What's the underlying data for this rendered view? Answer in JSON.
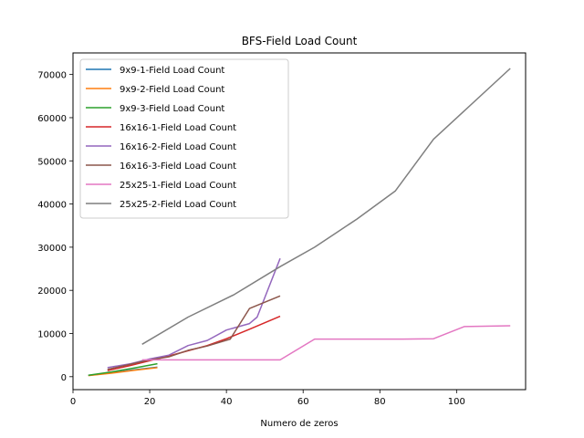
{
  "chart_data": {
    "type": "line",
    "title": "BFS-Field Load Count",
    "xlabel": "Numero de zeros",
    "ylabel": "",
    "xlim": [
      0,
      118
    ],
    "ylim": [
      -3000,
      75000
    ],
    "xticks": [
      0,
      20,
      40,
      60,
      80,
      100
    ],
    "yticks": [
      0,
      10000,
      20000,
      30000,
      40000,
      50000,
      60000,
      70000
    ],
    "grid": false,
    "legend_position": "top-left",
    "series": [
      {
        "name": "9x9-1-Field Load Count",
        "color": "#1f77b4",
        "x": [
          4,
          10,
          16,
          22
        ],
        "y": [
          300,
          900,
          1600,
          2200
        ]
      },
      {
        "name": "9x9-2-Field Load Count",
        "color": "#ff7f0e",
        "x": [
          4,
          10,
          16,
          22
        ],
        "y": [
          250,
          800,
          1500,
          2100
        ]
      },
      {
        "name": "9x9-3-Field Load Count",
        "color": "#2ca02c",
        "x": [
          4,
          10,
          16,
          22
        ],
        "y": [
          350,
          1100,
          2000,
          3000
        ]
      },
      {
        "name": "16x16-1-Field Load Count",
        "color": "#d62728",
        "x": [
          9,
          15,
          20,
          25,
          30,
          35,
          40,
          46,
          54
        ],
        "y": [
          1400,
          2600,
          3700,
          4800,
          6000,
          7200,
          8800,
          11000,
          14000
        ]
      },
      {
        "name": "16x16-2-Field Load Count",
        "color": "#9467bd",
        "x": [
          9,
          15,
          20,
          25,
          30,
          35,
          40,
          46,
          48,
          54
        ],
        "y": [
          2100,
          3000,
          4100,
          5000,
          7200,
          8400,
          10800,
          12300,
          13800,
          27400
        ]
      },
      {
        "name": "16x16-3-Field Load Count",
        "color": "#8c564b",
        "x": [
          9,
          15,
          20,
          25,
          30,
          35,
          41,
          46,
          54
        ],
        "y": [
          1700,
          2900,
          3900,
          4600,
          6100,
          7100,
          8700,
          15800,
          18700
        ]
      },
      {
        "name": "25x25-1-Field Load Count",
        "color": "#e377c2",
        "x": [
          18,
          30,
          40,
          50,
          54,
          63,
          75,
          86,
          94,
          102,
          114
        ],
        "y": [
          3900,
          3900,
          3900,
          3900,
          3900,
          8700,
          8700,
          8700,
          8800,
          11600,
          11800
        ]
      },
      {
        "name": "25x25-2-Field Load Count",
        "color": "#7f7f7f",
        "x": [
          18,
          30,
          42,
          54,
          63,
          74,
          84,
          94,
          114
        ],
        "y": [
          7500,
          13800,
          19000,
          25500,
          30000,
          36500,
          43000,
          55000,
          71400
        ]
      }
    ]
  }
}
